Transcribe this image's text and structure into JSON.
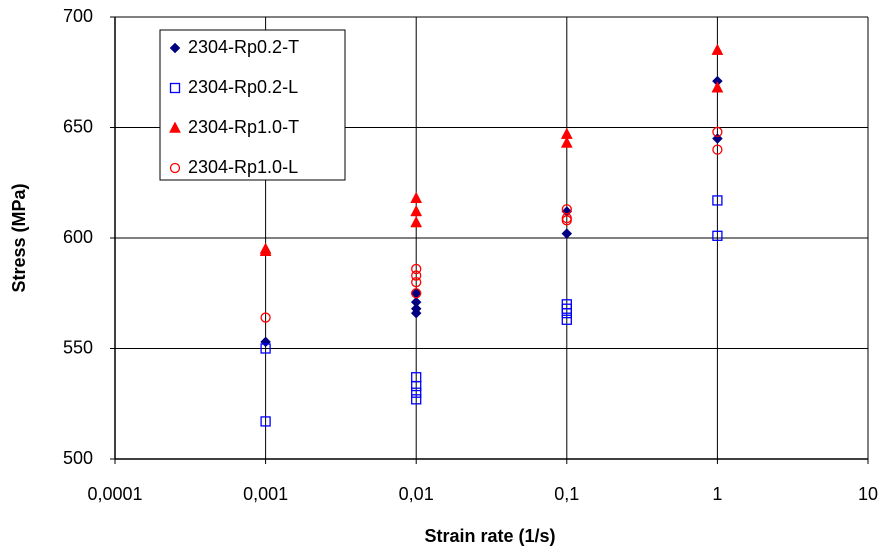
{
  "chart_data": {
    "type": "scatter",
    "xlabel": "Strain rate (1/s)",
    "ylabel": "Stress (MPa)",
    "xscale": "log",
    "grid": true,
    "legend": "upper left",
    "xlim": [
      0.0001,
      10
    ],
    "xticks": [
      {
        "value": 0.0001,
        "label": "0,0001"
      },
      {
        "value": 0.001,
        "label": "0,001"
      },
      {
        "value": 0.01,
        "label": "0,01"
      },
      {
        "value": 0.1,
        "label": "0,1"
      },
      1,
      10
    ],
    "ylim": [
      500,
      700
    ],
    "yticks": [
      500,
      550,
      600,
      650,
      700
    ],
    "series": [
      {
        "name": "2304-Rp0.2-T",
        "color": "#000080",
        "marker": "diamond",
        "filled": true,
        "x": [
          0.001,
          0.01,
          0.01,
          0.01,
          0.01,
          0.1,
          0.1,
          1,
          1
        ],
        "values": [
          553,
          566,
          568,
          571,
          575,
          602,
          612,
          671,
          645
        ]
      },
      {
        "name": "2304-Rp0.2-L",
        "color": "#0000ff",
        "marker": "square",
        "filled": false,
        "x": [
          0.001,
          0.001,
          0.01,
          0.01,
          0.01,
          0.01,
          0.1,
          0.1,
          0.1,
          0.1,
          1,
          1
        ],
        "values": [
          550,
          517,
          527,
          530,
          533,
          537,
          563,
          566,
          568,
          570,
          617,
          601
        ]
      },
      {
        "name": "2304-Rp1.0-T",
        "color": "#ff0000",
        "marker": "triangle",
        "filled": true,
        "x": [
          0.001,
          0.001,
          0.01,
          0.01,
          0.01,
          0.1,
          0.1,
          1,
          1
        ],
        "values": [
          594,
          595,
          607,
          612,
          618,
          643,
          647,
          668,
          685
        ]
      },
      {
        "name": "2304-Rp1.0-L",
        "color": "#ff0000",
        "marker": "circle",
        "filled": false,
        "x": [
          0.001,
          0.01,
          0.01,
          0.01,
          0.01,
          0.1,
          0.1,
          0.1,
          1,
          1
        ],
        "values": [
          564,
          575,
          580,
          583,
          586,
          608,
          609,
          613,
          648,
          640
        ]
      }
    ]
  }
}
